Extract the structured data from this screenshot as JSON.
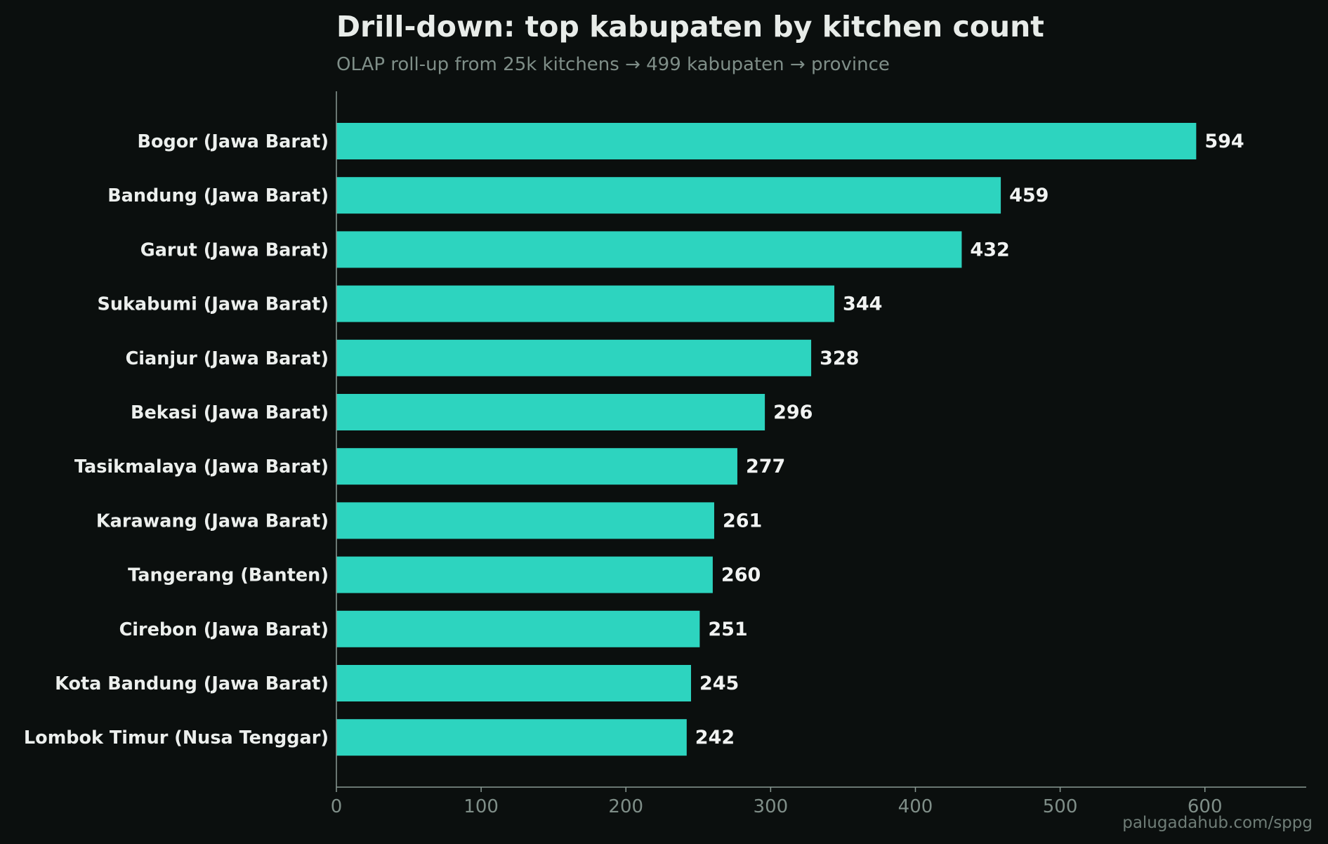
{
  "colors": {
    "background": "#0b0f0e",
    "bar": "#2dd4bf",
    "axis": "#8a9a94"
  },
  "footer": "palugadahub.com/sppg",
  "chart_data": {
    "type": "bar",
    "orientation": "horizontal",
    "title": "Drill-down: top kabupaten by kitchen count",
    "subtitle": "OLAP roll-up from 25k kitchens → 499 kabupaten → province",
    "xlabel": "",
    "ylabel": "",
    "categories": [
      "Bogor (Jawa Barat)",
      "Bandung (Jawa Barat)",
      "Garut (Jawa Barat)",
      "Sukabumi (Jawa Barat)",
      "Cianjur (Jawa Barat)",
      "Bekasi (Jawa Barat)",
      "Tasikmalaya (Jawa Barat)",
      "Karawang (Jawa Barat)",
      "Tangerang (Banten)",
      "Cirebon (Jawa Barat)",
      "Kota Bandung (Jawa Barat)",
      "Lombok Timur (Nusa Tenggar)"
    ],
    "values": [
      594,
      459,
      432,
      344,
      328,
      296,
      277,
      261,
      260,
      251,
      245,
      242
    ],
    "xlim": [
      0,
      670
    ],
    "xticks": [
      0,
      100,
      200,
      300,
      400,
      500,
      600
    ],
    "grid": false,
    "legend": "none"
  }
}
